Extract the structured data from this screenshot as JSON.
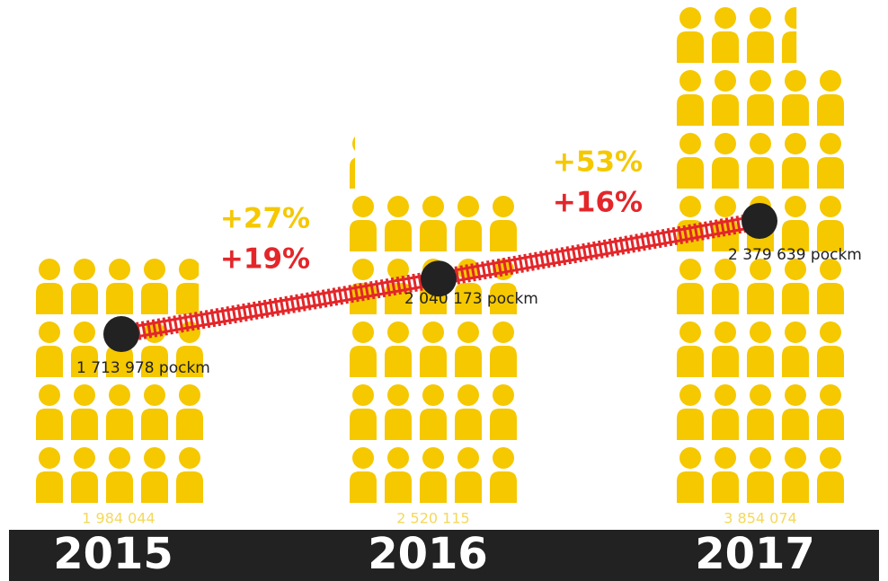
{
  "chart_data": {
    "type": "pictogram",
    "categories": [
      "2015",
      "2016",
      "2017"
    ],
    "series": [
      {
        "name": "passengers",
        "color": "#f5c800",
        "values": [
          1984044,
          2520115,
          3854074
        ],
        "value_labels": [
          "1 984 044",
          "2 520 115",
          "3 854 074"
        ]
      },
      {
        "name": "passenger-km",
        "color": "#e3262a",
        "values": [
          1713978,
          2040173,
          2379639
        ],
        "value_labels": [
          "1 713 978 pockm",
          "2 040 173 pockm",
          "2 379 639 pockm"
        ]
      }
    ],
    "annotations": [
      {
        "passengers": "+27%",
        "pkm": "+19%"
      },
      {
        "passengers": "+53%",
        "pkm": "+16%"
      }
    ]
  }
}
